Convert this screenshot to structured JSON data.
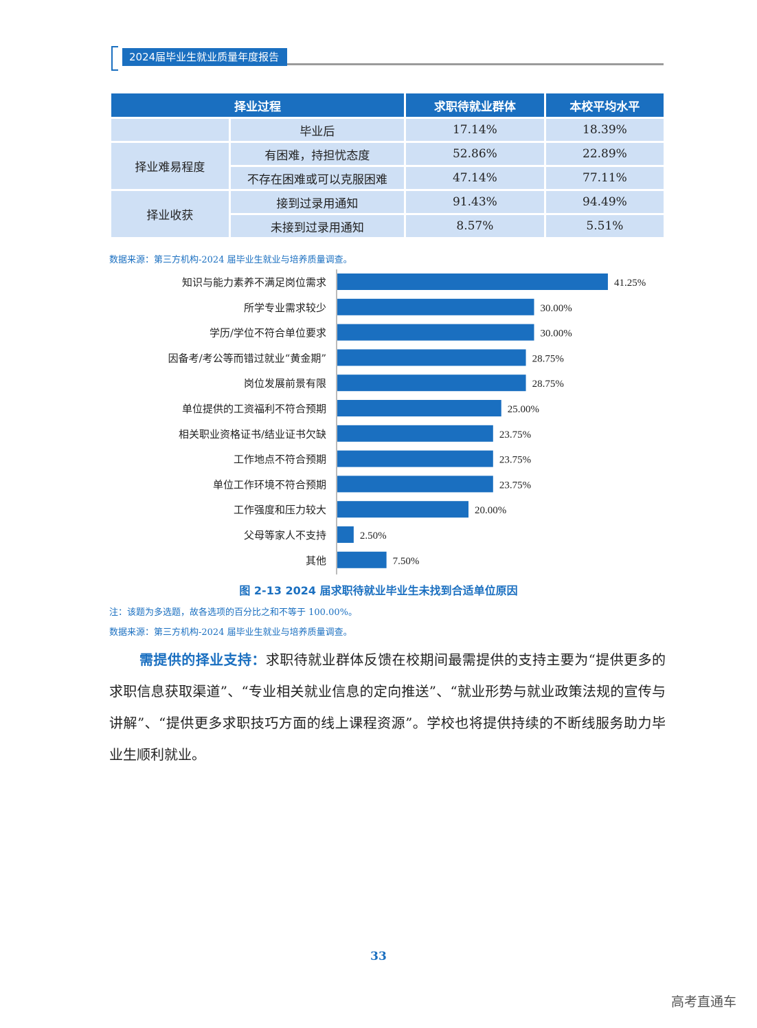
{
  "header": {
    "title": "2024届毕业生就业质量年度报告"
  },
  "table": {
    "headers": [
      "择业过程",
      "求职待就业群体",
      "本校平均水平"
    ],
    "rows": [
      {
        "group": "",
        "item": "毕业后",
        "g": "17.14%",
        "s": "18.39%"
      },
      {
        "group": "择业难易程度",
        "item": "有困难，持担忧态度",
        "g": "52.86%",
        "s": "22.89%"
      },
      {
        "group": "",
        "item": "不存在困难或可以克服困难",
        "g": "47.14%",
        "s": "77.11%"
      },
      {
        "group": "择业收获",
        "item": "接到过录用通知",
        "g": "91.43%",
        "s": "94.49%"
      },
      {
        "group": "",
        "item": "未接到过录用通知",
        "g": "8.57%",
        "s": "5.51%"
      }
    ],
    "source": "数据来源：第三方机构-2024 届毕业生就业与培养质量调查。"
  },
  "chart_data": {
    "type": "bar",
    "orientation": "horizontal",
    "bar_color": "#1a6fc0",
    "categories": [
      "知识与能力素养不满足岗位需求",
      "所学专业需求较少",
      "学历/学位不符合单位要求",
      "因备考/考公等而错过就业“黄金期”",
      "岗位发展前景有限",
      "单位提供的工资福利不符合预期",
      "相关职业资格证书/结业证书欠缺",
      "工作地点不符合预期",
      "单位工作环境不符合预期",
      "工作强度和压力较大",
      "父母等家人不支持",
      "其他"
    ],
    "values": [
      41.25,
      30.0,
      30.0,
      28.75,
      28.75,
      25.0,
      23.75,
      23.75,
      23.75,
      20.0,
      2.5,
      7.5
    ],
    "labels": [
      "41.25%",
      "30.00%",
      "30.00%",
      "28.75%",
      "28.75%",
      "25.00%",
      "23.75%",
      "23.75%",
      "23.75%",
      "20.00%",
      "2.50%",
      "7.50%"
    ],
    "title": "图 2-13  2024 届求职待就业毕业生未找到合适单位原因",
    "xlim": [
      0,
      45
    ]
  },
  "notes": {
    "note": "注：该题为多选题，故各选项的百分比之和不等于 100.00%。",
    "source": "数据来源：第三方机构-2024 届毕业生就业与培养质量调查。"
  },
  "paragraph": {
    "lead": "需提供的择业支持：",
    "text": "求职待就业群体反馈在校期间最需提供的支持主要为“提供更多的求职信息获取渠道”、“专业相关就业信息的定向推送”、“就业形势与就业政策法规的宣传与讲解”、“提供更多求职技巧方面的线上课程资源”。学校也将提供持续的不断线服务助力毕业生顺利就业。"
  },
  "page_number": "33",
  "watermark": "高考直通车"
}
